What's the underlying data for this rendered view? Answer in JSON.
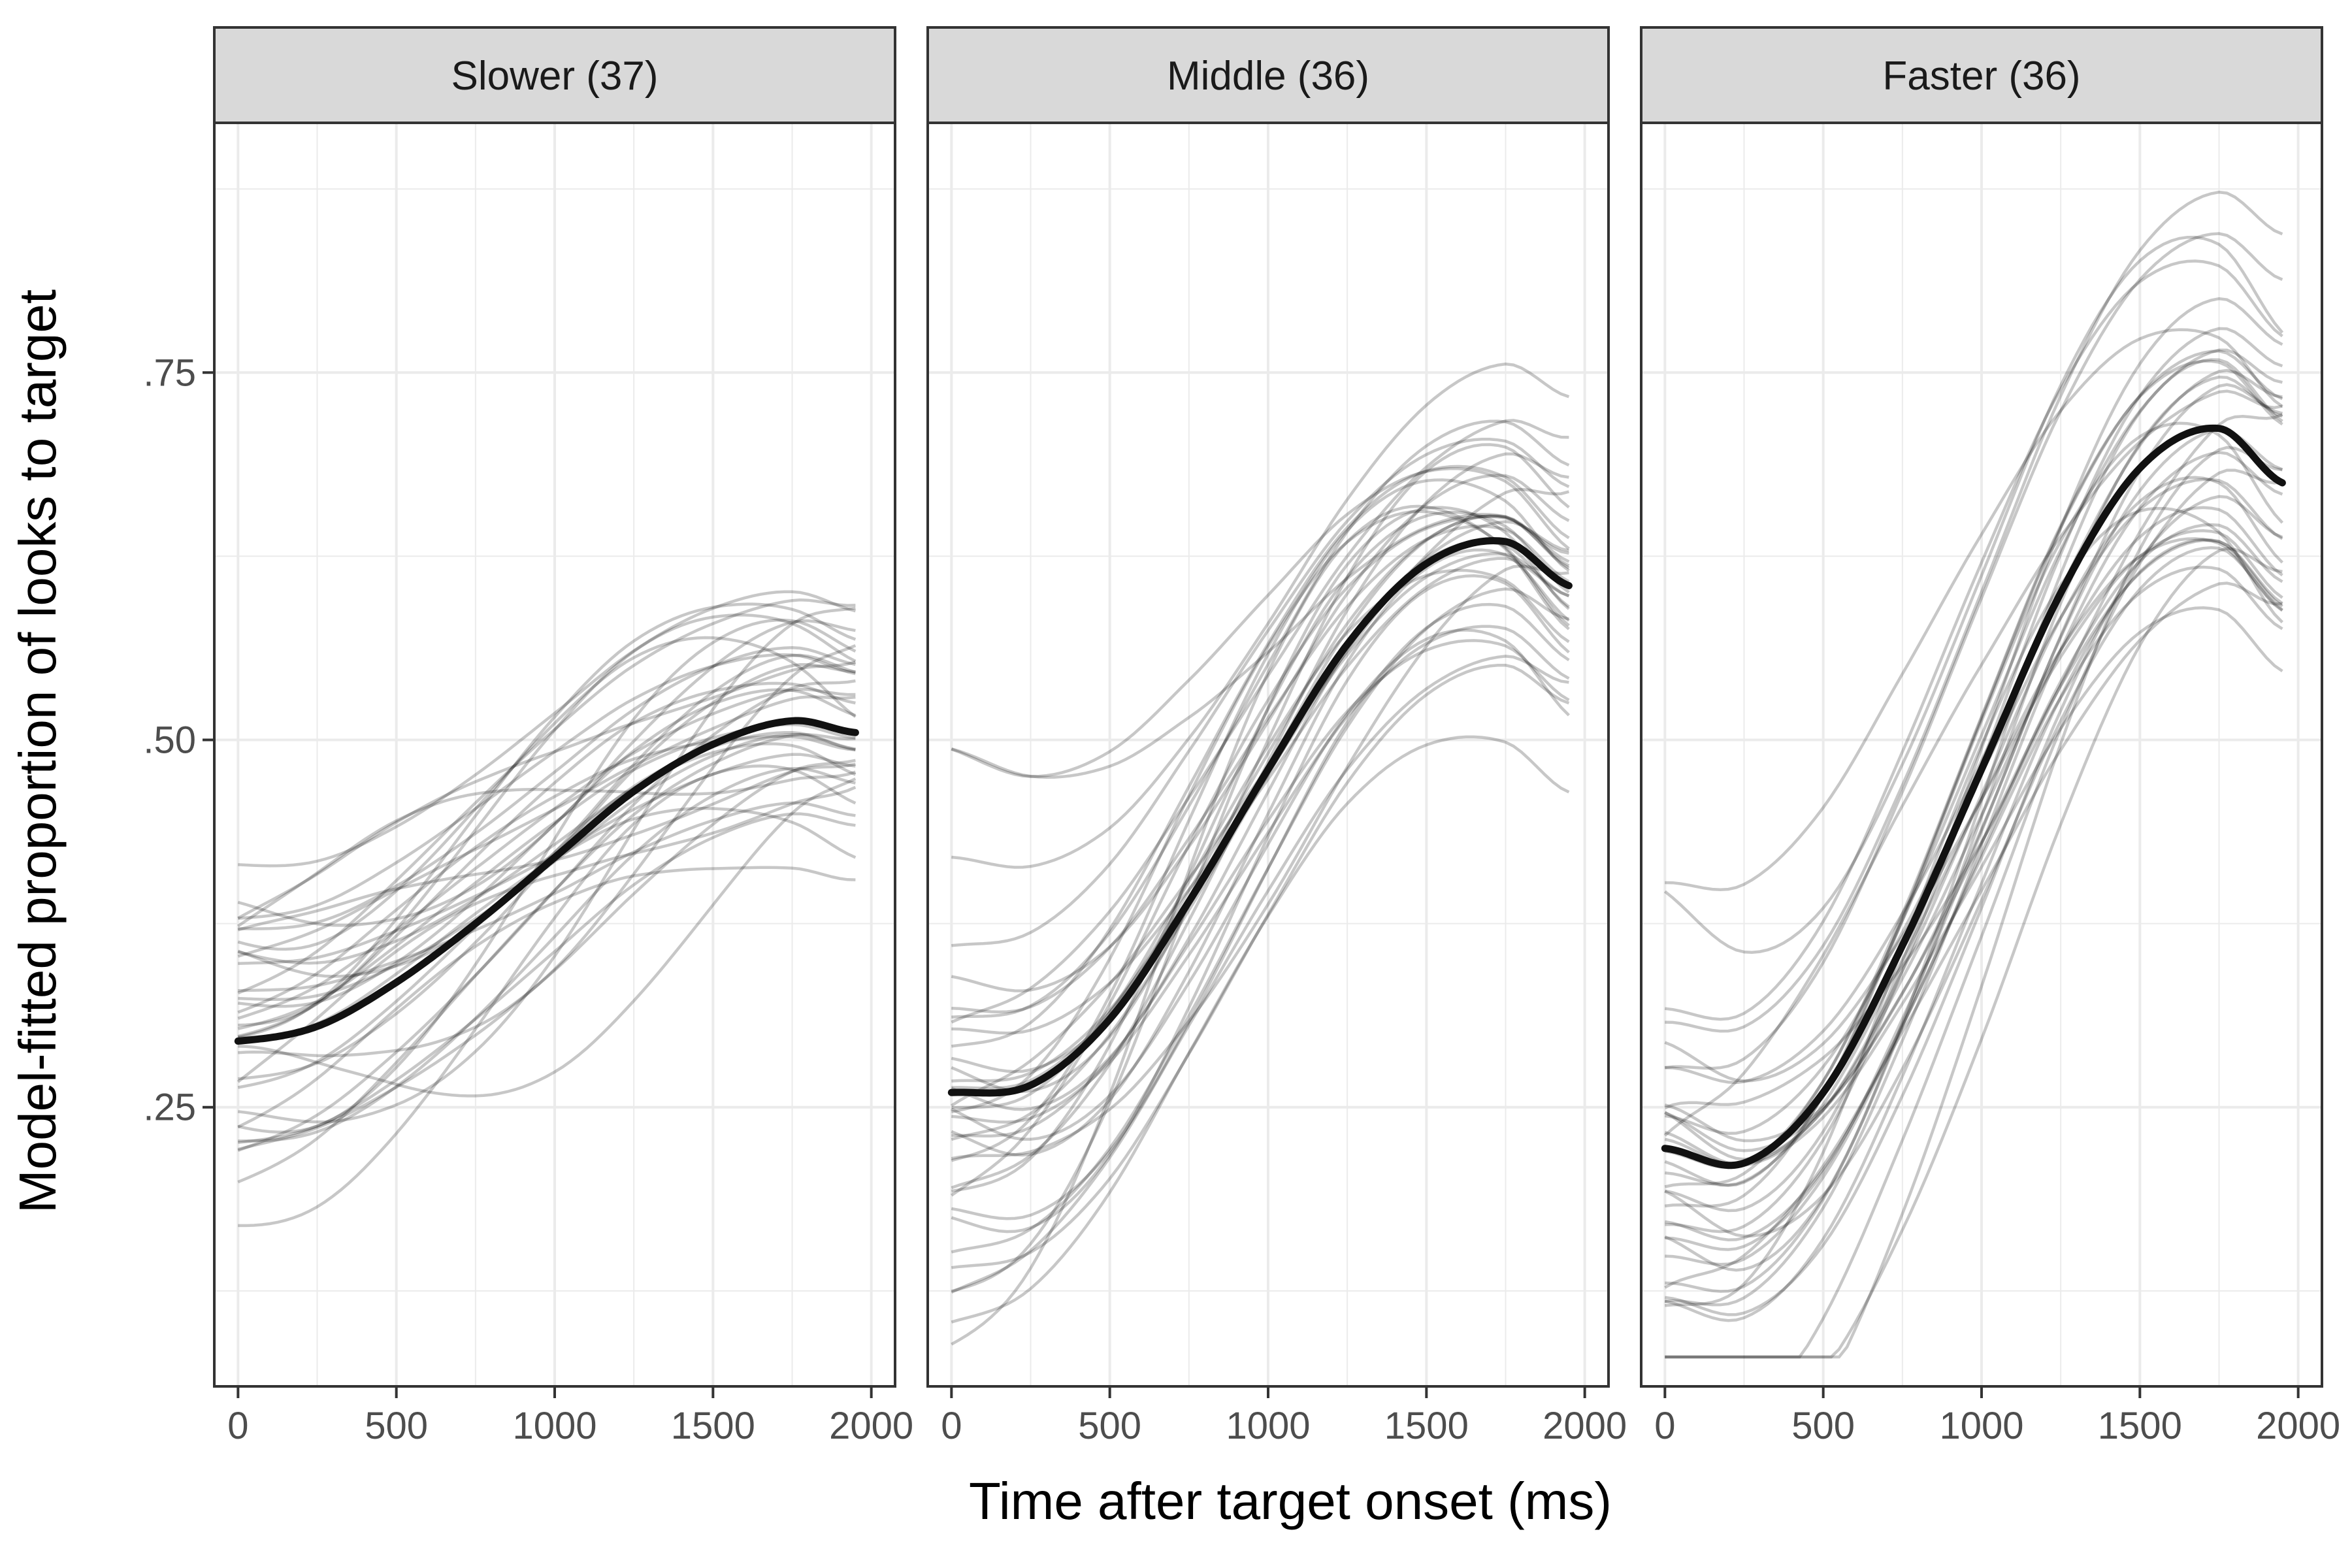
{
  "chart_data": {
    "type": "line",
    "title": "",
    "xlabel": "Time after target onset (ms)",
    "ylabel": "Model-fitted proportion of looks to target",
    "xlim": [
      -75,
      2075
    ],
    "ylim": [
      0.06,
      0.92
    ],
    "x_ticks": [
      0,
      500,
      1000,
      1500,
      2000
    ],
    "x_tick_labels": [
      "0",
      "500",
      "1000",
      "1500",
      "2000"
    ],
    "y_ticks": [
      0.25,
      0.5,
      0.75
    ],
    "y_tick_labels": [
      ".25",
      ".50",
      ".75"
    ],
    "grid": true,
    "legend": "none",
    "facets": [
      {
        "label": "Slower (37)",
        "mean_curve": {
          "x": [
            0,
            250,
            500,
            750,
            1000,
            1250,
            1500,
            1750,
            1950
          ],
          "y": [
            0.295,
            0.305,
            0.335,
            0.375,
            0.42,
            0.465,
            0.497,
            0.513,
            0.505
          ]
        },
        "individual_curves": 37
      },
      {
        "label": "Middle (36)",
        "mean_curve": {
          "x": [
            0,
            250,
            500,
            750,
            1000,
            1250,
            1500,
            1750,
            1950
          ],
          "y": [
            0.26,
            0.265,
            0.31,
            0.39,
            0.48,
            0.565,
            0.62,
            0.635,
            0.605
          ]
        },
        "individual_curves": 36
      },
      {
        "label": "Faster (36)",
        "mean_curve": {
          "x": [
            0,
            250,
            500,
            750,
            1000,
            1250,
            1500,
            1750,
            1950
          ],
          "y": [
            0.222,
            0.212,
            0.26,
            0.36,
            0.48,
            0.6,
            0.685,
            0.712,
            0.675
          ]
        },
        "individual_curves": 36
      }
    ]
  },
  "colors": {
    "panel_border": "#333333",
    "strip_fill": "#d9d9d9",
    "grid": "#ebebeb",
    "individual_line": "rgba(0,0,0,0.22)",
    "mean_line": "#111111"
  }
}
